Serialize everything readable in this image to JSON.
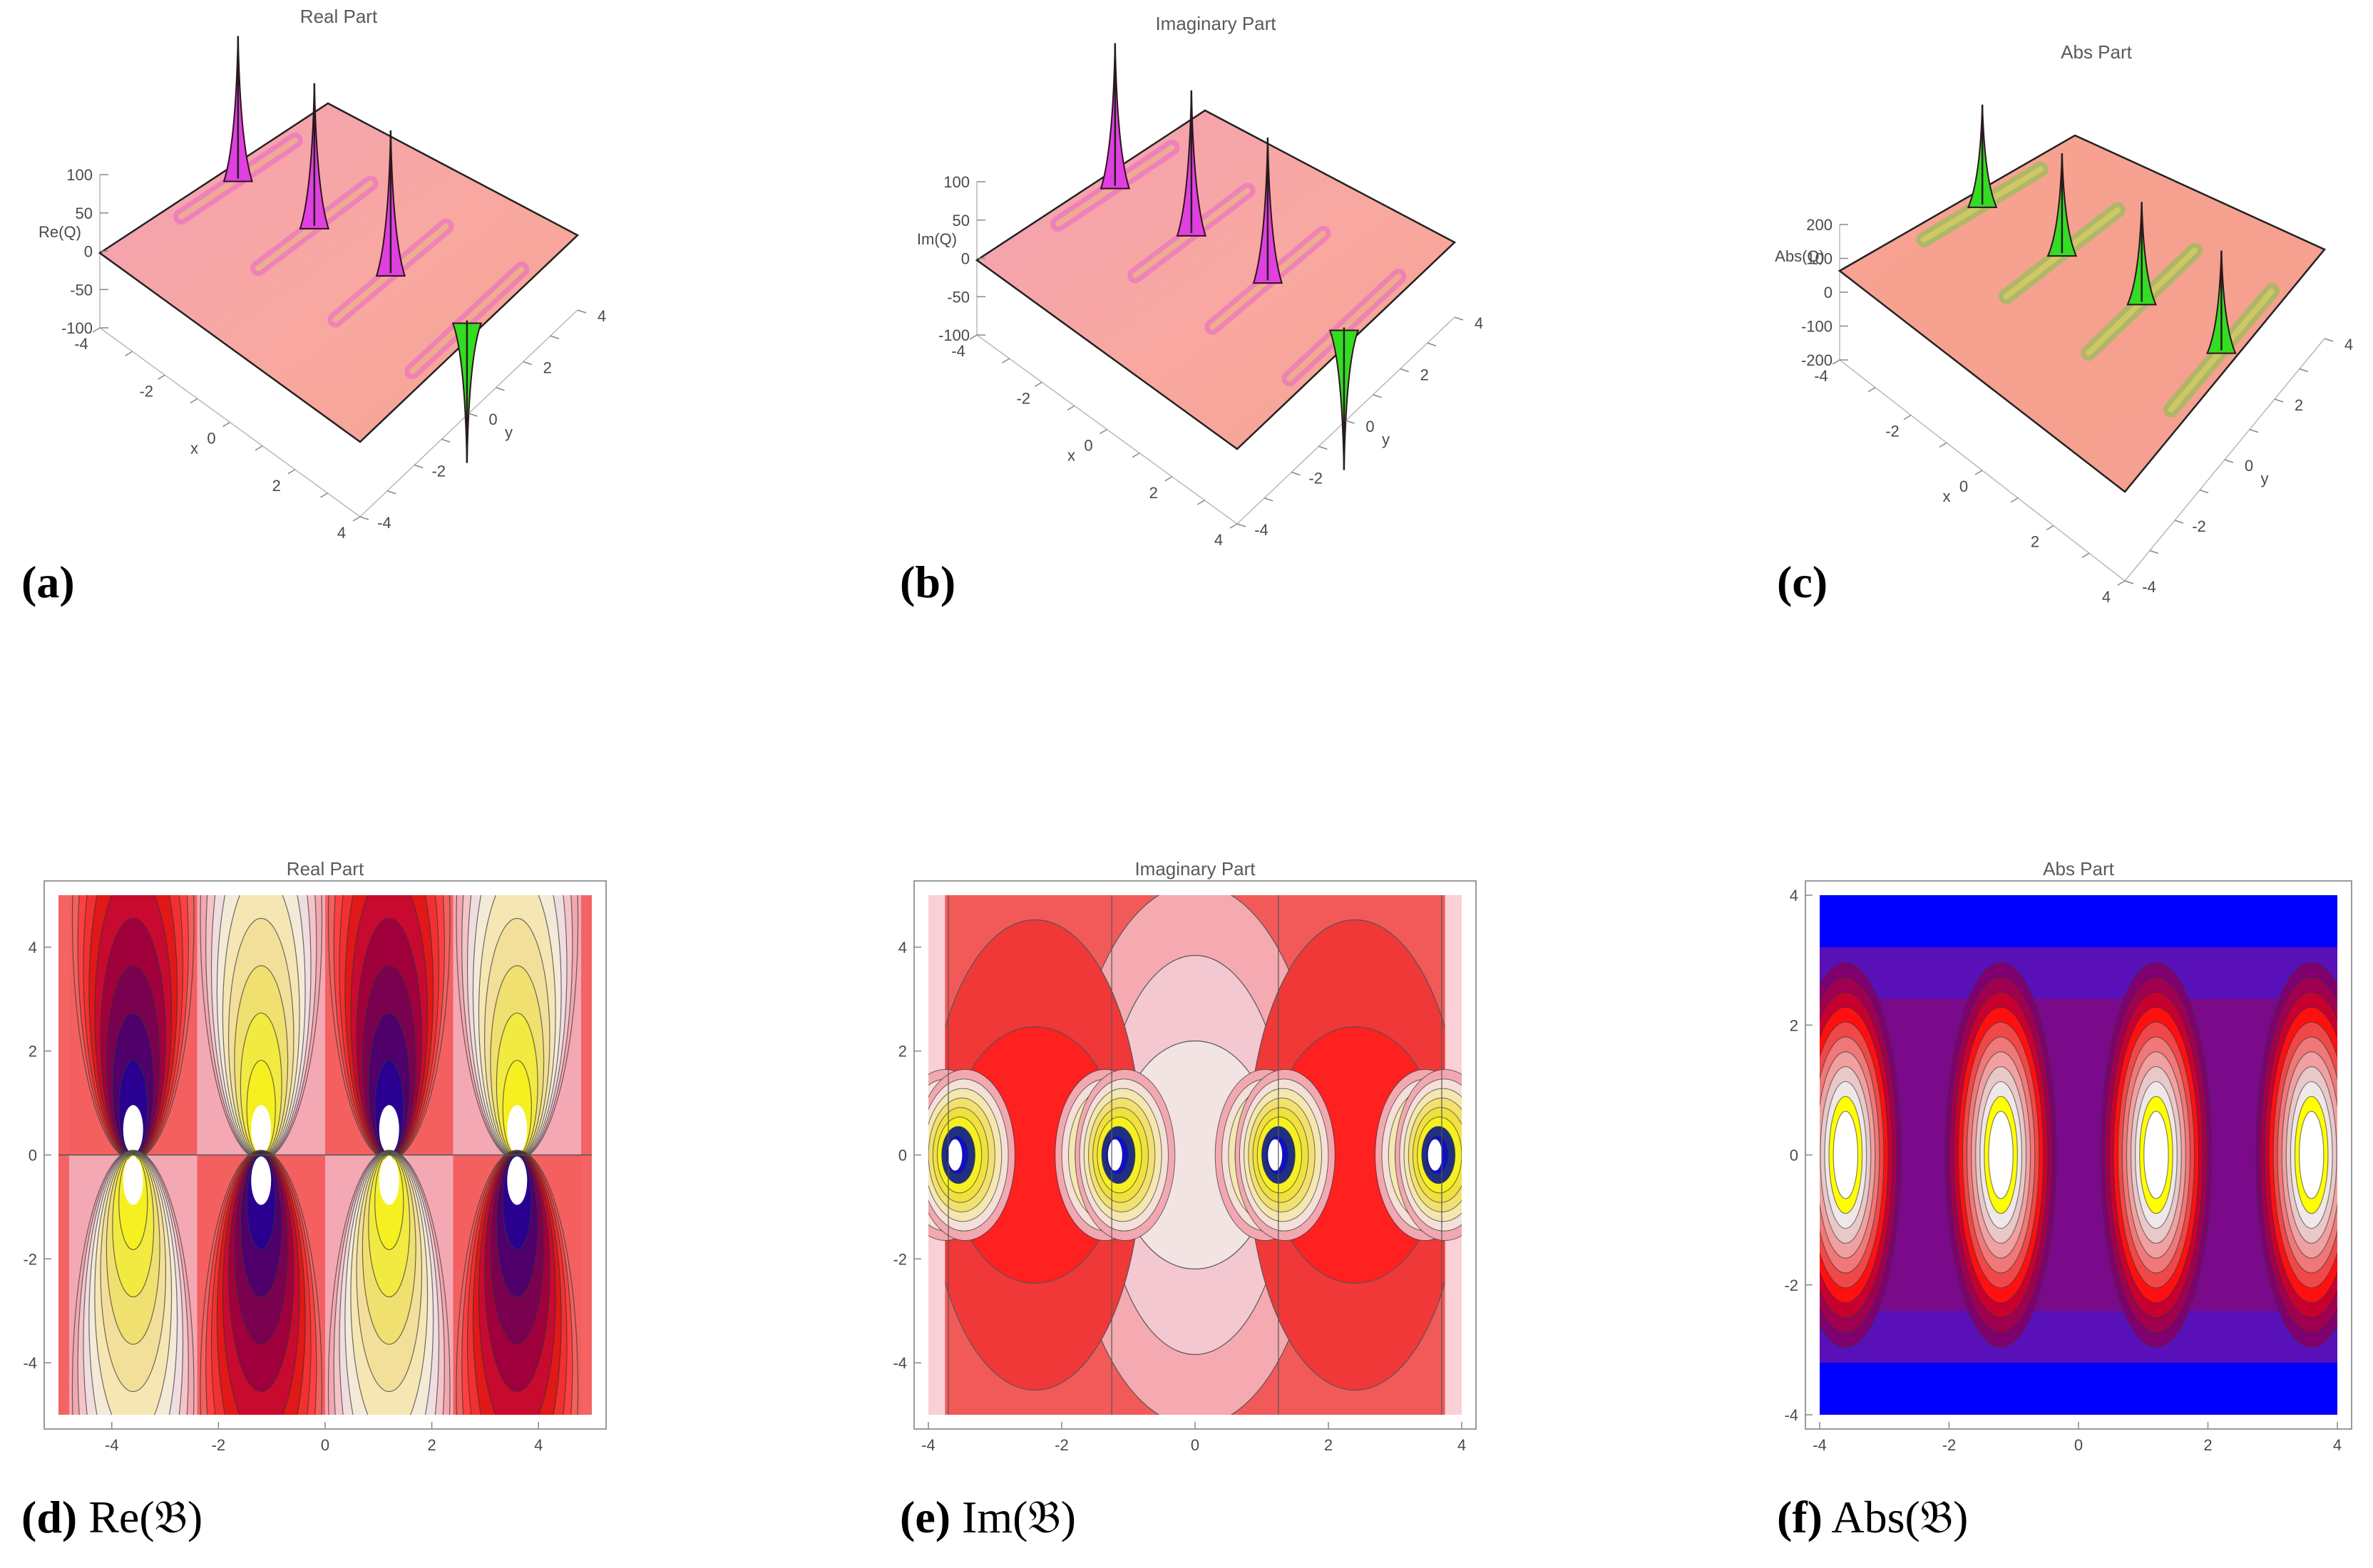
{
  "chart_data": [
    {
      "id": "a",
      "type": "surface3d",
      "title": "Real Part",
      "zlabel": "Re(Q)",
      "xlabel": "x",
      "ylabel": "y",
      "x_ticks": [
        "-4",
        "-2",
        "0",
        "2",
        "4"
      ],
      "y_ticks": [
        "-4",
        "-2",
        "0",
        "2",
        "4"
      ],
      "z_ticks": [
        "100",
        "50",
        "0",
        "-50",
        "-100"
      ],
      "xlim": [
        -4,
        4
      ],
      "ylim": [
        -4,
        4
      ],
      "zlim": [
        -100,
        100
      ],
      "peaks": [
        {
          "x": -3.6,
          "sign": 1
        },
        {
          "x": -1.2,
          "sign": 1
        },
        {
          "x": 1.2,
          "sign": 1
        },
        {
          "x": 3.6,
          "sign": -1
        }
      ],
      "colors": {
        "surface": "#f7a6a0",
        "accent": "#e040e0",
        "green": "#33dd22"
      },
      "caption_letter": "(a)",
      "caption_text": ""
    },
    {
      "id": "b",
      "type": "surface3d",
      "title": "Imaginary Part",
      "zlabel": "Im(Q)",
      "xlabel": "x",
      "ylabel": "y",
      "x_ticks": [
        "-4",
        "-2",
        "0",
        "2",
        "4"
      ],
      "y_ticks": [
        "-4",
        "-2",
        "0",
        "2",
        "4"
      ],
      "z_ticks": [
        "100",
        "50",
        "0",
        "-50",
        "-100"
      ],
      "xlim": [
        -4,
        4
      ],
      "ylim": [
        -4,
        4
      ],
      "zlim": [
        -100,
        100
      ],
      "peaks": [
        {
          "x": -3.6,
          "sign": 1
        },
        {
          "x": -1.2,
          "sign": 1
        },
        {
          "x": 1.2,
          "sign": 1
        },
        {
          "x": 3.6,
          "sign": -1
        }
      ],
      "colors": {
        "surface": "#f7a6a0",
        "accent": "#e040e0",
        "green": "#33dd22"
      },
      "caption_letter": "(b)",
      "caption_text": ""
    },
    {
      "id": "c",
      "type": "surface3d",
      "title": "Abs Part",
      "zlabel": "Abs(Q)",
      "xlabel": "x",
      "ylabel": "y",
      "x_ticks": [
        "-4",
        "-2",
        "0",
        "2",
        "4"
      ],
      "y_ticks": [
        "-4",
        "-2",
        "0",
        "2",
        "4"
      ],
      "z_ticks": [
        "200",
        "100",
        "0",
        "-100",
        "-200"
      ],
      "xlim": [
        -4,
        4
      ],
      "ylim": [
        -4,
        4
      ],
      "zlim": [
        -200,
        200
      ],
      "peaks": [
        {
          "x": -3.6,
          "sign": 1
        },
        {
          "x": -1.2,
          "sign": 1
        },
        {
          "x": 1.2,
          "sign": 1
        },
        {
          "x": 3.6,
          "sign": 1
        }
      ],
      "colors": {
        "surface": "#f7a6a0",
        "accent": "#33dd22",
        "green": "#33dd22"
      },
      "caption_letter": "(c)",
      "caption_text": ""
    },
    {
      "id": "d",
      "type": "contour",
      "title": "Real Part",
      "variant": "real",
      "x_ticks": [
        "-4",
        "-2",
        "0",
        "2",
        "4"
      ],
      "y_ticks": [
        "4",
        "2",
        "0",
        "-2",
        "-4"
      ],
      "xlim": [
        -5,
        5
      ],
      "ylim": [
        -5,
        5
      ],
      "poles": [
        -3.6,
        -1.2,
        1.2,
        3.6
      ],
      "caption_letter": "(d)",
      "caption_text": " Re(𝔅)"
    },
    {
      "id": "e",
      "type": "contour",
      "title": "Imaginary Part",
      "variant": "imag",
      "x_ticks": [
        "-4",
        "-2",
        "0",
        "2",
        "4"
      ],
      "y_ticks": [
        "4",
        "2",
        "0",
        "-2",
        "-4"
      ],
      "xlim": [
        -4,
        4
      ],
      "ylim": [
        -5,
        5
      ],
      "poles": [
        -3.6,
        -1.2,
        1.2,
        3.6
      ],
      "caption_letter": "(e)",
      "caption_text": " Im(𝔅)"
    },
    {
      "id": "f",
      "type": "contour",
      "title": "Abs Part",
      "variant": "abs",
      "x_ticks": [
        "-4",
        "-2",
        "0",
        "2",
        "4"
      ],
      "y_ticks": [
        "4",
        "2",
        "0",
        "-2",
        "-4"
      ],
      "xlim": [
        -4,
        4
      ],
      "ylim": [
        -4,
        4
      ],
      "poles": [
        -3.6,
        -1.2,
        1.2,
        3.6
      ],
      "caption_letter": "(f)",
      "caption_text": " Abs(𝔅)"
    }
  ]
}
